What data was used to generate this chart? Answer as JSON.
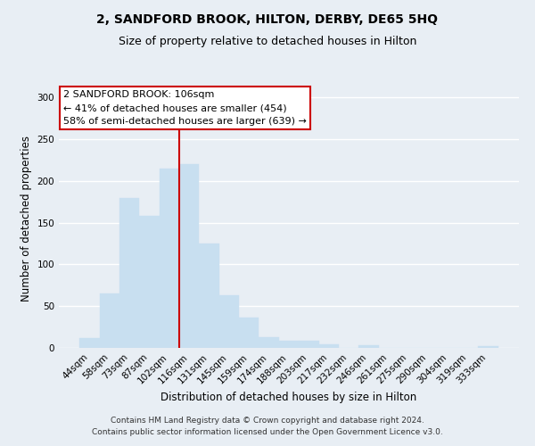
{
  "title": "2, SANDFORD BROOK, HILTON, DERBY, DE65 5HQ",
  "subtitle": "Size of property relative to detached houses in Hilton",
  "xlabel": "Distribution of detached houses by size in Hilton",
  "ylabel": "Number of detached properties",
  "bar_labels": [
    "44sqm",
    "58sqm",
    "73sqm",
    "87sqm",
    "102sqm",
    "116sqm",
    "131sqm",
    "145sqm",
    "159sqm",
    "174sqm",
    "188sqm",
    "203sqm",
    "217sqm",
    "232sqm",
    "246sqm",
    "261sqm",
    "275sqm",
    "290sqm",
    "304sqm",
    "319sqm",
    "333sqm"
  ],
  "bar_heights": [
    12,
    65,
    180,
    158,
    215,
    220,
    125,
    63,
    36,
    13,
    9,
    9,
    4,
    0,
    3,
    0,
    0,
    0,
    0,
    0,
    2
  ],
  "bar_color": "#c8dff0",
  "bar_edge_color": "#c8dff0",
  "vline_x": 4.5,
  "vline_color": "#cc0000",
  "ylim": [
    0,
    310
  ],
  "yticks": [
    0,
    50,
    100,
    150,
    200,
    250,
    300
  ],
  "annotation_title": "2 SANDFORD BROOK: 106sqm",
  "annotation_line1": "← 41% of detached houses are smaller (454)",
  "annotation_line2": "58% of semi-detached houses are larger (639) →",
  "footer_line1": "Contains HM Land Registry data © Crown copyright and database right 2024.",
  "footer_line2": "Contains public sector information licensed under the Open Government Licence v3.0.",
  "background_color": "#e8eef4",
  "grid_color": "#ffffff",
  "title_fontsize": 10,
  "subtitle_fontsize": 9,
  "axis_label_fontsize": 8.5,
  "tick_fontsize": 7.5,
  "annotation_fontsize": 8,
  "footer_fontsize": 6.5
}
